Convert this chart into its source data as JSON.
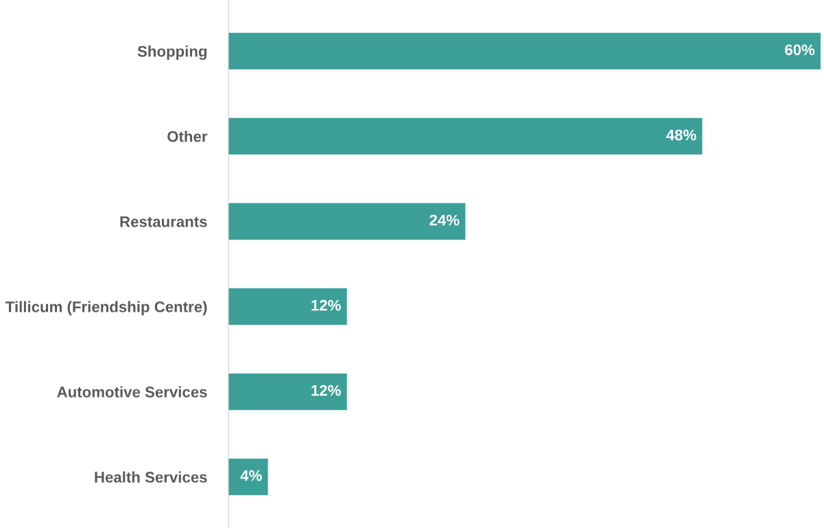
{
  "chart_data": {
    "type": "bar",
    "orientation": "horizontal",
    "categories": [
      "Shopping",
      "Other",
      "Restaurants",
      "Tillicum (Friendship Centre)",
      "Automotive Services",
      "Health Services"
    ],
    "values": [
      60,
      48,
      24,
      12,
      12,
      4
    ],
    "value_labels": [
      "60%",
      "48%",
      "24%",
      "12%",
      "12%",
      "4%"
    ],
    "color": "#3c9f98",
    "grid": false,
    "legend": false
  }
}
